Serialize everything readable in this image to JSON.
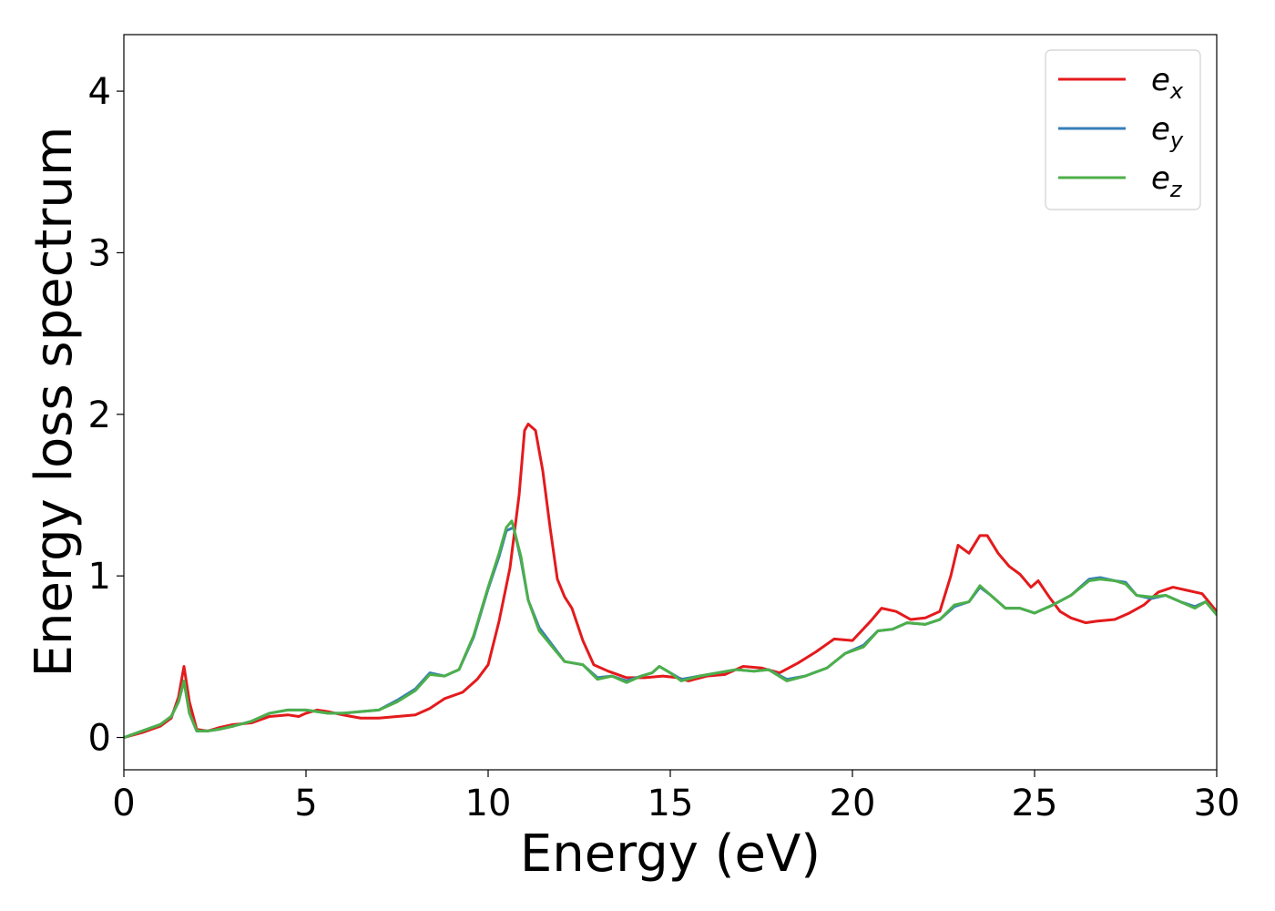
{
  "chart_data": {
    "type": "line",
    "title": "",
    "xlabel": "Energy (eV)",
    "ylabel": "Energy loss spectrum",
    "xlim": [
      0,
      30
    ],
    "ylim": [
      -0.2,
      4.35
    ],
    "xticks": [
      "0",
      "5",
      "10",
      "15",
      "20",
      "25",
      "30"
    ],
    "yticks": [
      "0",
      "1",
      "2",
      "3",
      "4"
    ],
    "grid": false,
    "legend_position": "top-right",
    "series": [
      {
        "name": "e",
        "subscript": "x",
        "color": "#e41a1c",
        "points": [
          [
            0,
            0
          ],
          [
            0.5,
            0.03
          ],
          [
            1.0,
            0.07
          ],
          [
            1.3,
            0.12
          ],
          [
            1.5,
            0.25
          ],
          [
            1.65,
            0.44
          ],
          [
            1.8,
            0.22
          ],
          [
            2.0,
            0.05
          ],
          [
            2.3,
            0.04
          ],
          [
            2.6,
            0.06
          ],
          [
            3.0,
            0.08
          ],
          [
            3.5,
            0.09
          ],
          [
            4.0,
            0.13
          ],
          [
            4.5,
            0.14
          ],
          [
            4.8,
            0.13
          ],
          [
            5.0,
            0.15
          ],
          [
            5.3,
            0.17
          ],
          [
            5.6,
            0.16
          ],
          [
            6.0,
            0.14
          ],
          [
            6.5,
            0.12
          ],
          [
            7.0,
            0.12
          ],
          [
            7.5,
            0.13
          ],
          [
            8.0,
            0.14
          ],
          [
            8.4,
            0.18
          ],
          [
            8.8,
            0.24
          ],
          [
            9.3,
            0.28
          ],
          [
            9.7,
            0.36
          ],
          [
            10.0,
            0.45
          ],
          [
            10.3,
            0.72
          ],
          [
            10.6,
            1.05
          ],
          [
            10.85,
            1.5
          ],
          [
            11.0,
            1.9
          ],
          [
            11.1,
            1.94
          ],
          [
            11.3,
            1.9
          ],
          [
            11.5,
            1.65
          ],
          [
            11.7,
            1.3
          ],
          [
            11.9,
            0.98
          ],
          [
            12.1,
            0.87
          ],
          [
            12.3,
            0.8
          ],
          [
            12.6,
            0.6
          ],
          [
            12.9,
            0.45
          ],
          [
            13.3,
            0.41
          ],
          [
            13.8,
            0.37
          ],
          [
            14.3,
            0.37
          ],
          [
            14.8,
            0.38
          ],
          [
            15.2,
            0.37
          ],
          [
            15.5,
            0.35
          ],
          [
            16.0,
            0.38
          ],
          [
            16.5,
            0.39
          ],
          [
            17.0,
            0.44
          ],
          [
            17.5,
            0.43
          ],
          [
            18.0,
            0.4
          ],
          [
            18.5,
            0.46
          ],
          [
            19.0,
            0.53
          ],
          [
            19.5,
            0.61
          ],
          [
            20.0,
            0.6
          ],
          [
            20.5,
            0.72
          ],
          [
            20.8,
            0.8
          ],
          [
            21.2,
            0.78
          ],
          [
            21.6,
            0.73
          ],
          [
            22.0,
            0.74
          ],
          [
            22.4,
            0.78
          ],
          [
            22.7,
            1.0
          ],
          [
            22.9,
            1.19
          ],
          [
            23.2,
            1.14
          ],
          [
            23.5,
            1.25
          ],
          [
            23.7,
            1.25
          ],
          [
            24.0,
            1.14
          ],
          [
            24.3,
            1.06
          ],
          [
            24.6,
            1.01
          ],
          [
            24.9,
            0.93
          ],
          [
            25.1,
            0.97
          ],
          [
            25.4,
            0.87
          ],
          [
            25.7,
            0.78
          ],
          [
            26.0,
            0.74
          ],
          [
            26.4,
            0.71
          ],
          [
            26.7,
            0.72
          ],
          [
            27.2,
            0.73
          ],
          [
            27.6,
            0.77
          ],
          [
            28.0,
            0.82
          ],
          [
            28.4,
            0.9
          ],
          [
            28.8,
            0.93
          ],
          [
            29.2,
            0.91
          ],
          [
            29.6,
            0.89
          ],
          [
            30.0,
            0.78
          ]
        ]
      },
      {
        "name": "e",
        "subscript": "y",
        "color": "#377eb8",
        "points": [
          [
            0,
            0
          ],
          [
            0.5,
            0.04
          ],
          [
            1.0,
            0.08
          ],
          [
            1.3,
            0.13
          ],
          [
            1.5,
            0.22
          ],
          [
            1.65,
            0.35
          ],
          [
            1.8,
            0.15
          ],
          [
            2.0,
            0.04
          ],
          [
            2.3,
            0.04
          ],
          [
            2.6,
            0.05
          ],
          [
            3.0,
            0.07
          ],
          [
            3.5,
            0.1
          ],
          [
            4.0,
            0.15
          ],
          [
            4.5,
            0.17
          ],
          [
            5.0,
            0.17
          ],
          [
            5.3,
            0.16
          ],
          [
            5.6,
            0.15
          ],
          [
            6.0,
            0.15
          ],
          [
            6.5,
            0.16
          ],
          [
            7.0,
            0.17
          ],
          [
            7.5,
            0.23
          ],
          [
            8.0,
            0.3
          ],
          [
            8.4,
            0.4
          ],
          [
            8.8,
            0.38
          ],
          [
            9.2,
            0.42
          ],
          [
            9.6,
            0.62
          ],
          [
            10.0,
            0.92
          ],
          [
            10.3,
            1.12
          ],
          [
            10.5,
            1.28
          ],
          [
            10.7,
            1.3
          ],
          [
            10.9,
            1.1
          ],
          [
            11.1,
            0.85
          ],
          [
            11.4,
            0.68
          ],
          [
            11.8,
            0.56
          ],
          [
            12.1,
            0.47
          ],
          [
            12.6,
            0.45
          ],
          [
            13.0,
            0.37
          ],
          [
            13.4,
            0.38
          ],
          [
            13.8,
            0.35
          ],
          [
            14.2,
            0.38
          ],
          [
            14.5,
            0.4
          ],
          [
            14.7,
            0.44
          ],
          [
            15.0,
            0.4
          ],
          [
            15.3,
            0.36
          ],
          [
            15.8,
            0.38
          ],
          [
            16.3,
            0.4
          ],
          [
            16.8,
            0.42
          ],
          [
            17.3,
            0.41
          ],
          [
            17.7,
            0.42
          ],
          [
            18.2,
            0.36
          ],
          [
            18.7,
            0.38
          ],
          [
            19.3,
            0.43
          ],
          [
            19.8,
            0.52
          ],
          [
            20.3,
            0.57
          ],
          [
            20.7,
            0.66
          ],
          [
            21.1,
            0.67
          ],
          [
            21.5,
            0.71
          ],
          [
            22.0,
            0.7
          ],
          [
            22.4,
            0.73
          ],
          [
            22.8,
            0.81
          ],
          [
            23.2,
            0.84
          ],
          [
            23.5,
            0.93
          ],
          [
            23.8,
            0.88
          ],
          [
            24.2,
            0.8
          ],
          [
            24.6,
            0.8
          ],
          [
            25.0,
            0.77
          ],
          [
            25.5,
            0.82
          ],
          [
            26.0,
            0.88
          ],
          [
            26.5,
            0.98
          ],
          [
            26.8,
            0.99
          ],
          [
            27.2,
            0.97
          ],
          [
            27.5,
            0.96
          ],
          [
            27.8,
            0.88
          ],
          [
            28.2,
            0.86
          ],
          [
            28.6,
            0.88
          ],
          [
            29.0,
            0.84
          ],
          [
            29.4,
            0.81
          ],
          [
            29.7,
            0.84
          ],
          [
            30.0,
            0.76
          ]
        ]
      },
      {
        "name": "e",
        "subscript": "z",
        "color": "#4daf4a",
        "points": [
          [
            0,
            0
          ],
          [
            0.5,
            0.04
          ],
          [
            1.0,
            0.08
          ],
          [
            1.3,
            0.13
          ],
          [
            1.5,
            0.22
          ],
          [
            1.65,
            0.35
          ],
          [
            1.8,
            0.15
          ],
          [
            2.0,
            0.04
          ],
          [
            2.3,
            0.04
          ],
          [
            2.6,
            0.05
          ],
          [
            3.0,
            0.07
          ],
          [
            3.5,
            0.1
          ],
          [
            4.0,
            0.15
          ],
          [
            4.5,
            0.17
          ],
          [
            5.0,
            0.17
          ],
          [
            5.3,
            0.16
          ],
          [
            5.6,
            0.15
          ],
          [
            6.0,
            0.15
          ],
          [
            6.5,
            0.16
          ],
          [
            7.0,
            0.17
          ],
          [
            7.5,
            0.22
          ],
          [
            8.0,
            0.29
          ],
          [
            8.4,
            0.39
          ],
          [
            8.8,
            0.38
          ],
          [
            9.2,
            0.42
          ],
          [
            9.6,
            0.63
          ],
          [
            10.0,
            0.93
          ],
          [
            10.3,
            1.14
          ],
          [
            10.5,
            1.3
          ],
          [
            10.65,
            1.34
          ],
          [
            10.9,
            1.12
          ],
          [
            11.1,
            0.85
          ],
          [
            11.4,
            0.66
          ],
          [
            11.8,
            0.55
          ],
          [
            12.1,
            0.47
          ],
          [
            12.6,
            0.45
          ],
          [
            13.0,
            0.36
          ],
          [
            13.4,
            0.38
          ],
          [
            13.8,
            0.34
          ],
          [
            14.2,
            0.38
          ],
          [
            14.5,
            0.4
          ],
          [
            14.7,
            0.44
          ],
          [
            15.0,
            0.4
          ],
          [
            15.3,
            0.35
          ],
          [
            15.8,
            0.38
          ],
          [
            16.3,
            0.4
          ],
          [
            16.8,
            0.42
          ],
          [
            17.3,
            0.41
          ],
          [
            17.7,
            0.42
          ],
          [
            18.2,
            0.35
          ],
          [
            18.7,
            0.38
          ],
          [
            19.3,
            0.43
          ],
          [
            19.8,
            0.52
          ],
          [
            20.3,
            0.56
          ],
          [
            20.7,
            0.66
          ],
          [
            21.1,
            0.67
          ],
          [
            21.5,
            0.71
          ],
          [
            22.0,
            0.7
          ],
          [
            22.4,
            0.73
          ],
          [
            22.8,
            0.82
          ],
          [
            23.2,
            0.84
          ],
          [
            23.5,
            0.94
          ],
          [
            23.8,
            0.88
          ],
          [
            24.2,
            0.8
          ],
          [
            24.6,
            0.8
          ],
          [
            25.0,
            0.77
          ],
          [
            25.5,
            0.82
          ],
          [
            26.0,
            0.88
          ],
          [
            26.5,
            0.97
          ],
          [
            26.8,
            0.98
          ],
          [
            27.2,
            0.97
          ],
          [
            27.5,
            0.95
          ],
          [
            27.8,
            0.88
          ],
          [
            28.2,
            0.87
          ],
          [
            28.6,
            0.88
          ],
          [
            29.0,
            0.84
          ],
          [
            29.4,
            0.8
          ],
          [
            29.7,
            0.84
          ],
          [
            30.0,
            0.76
          ]
        ]
      }
    ]
  }
}
